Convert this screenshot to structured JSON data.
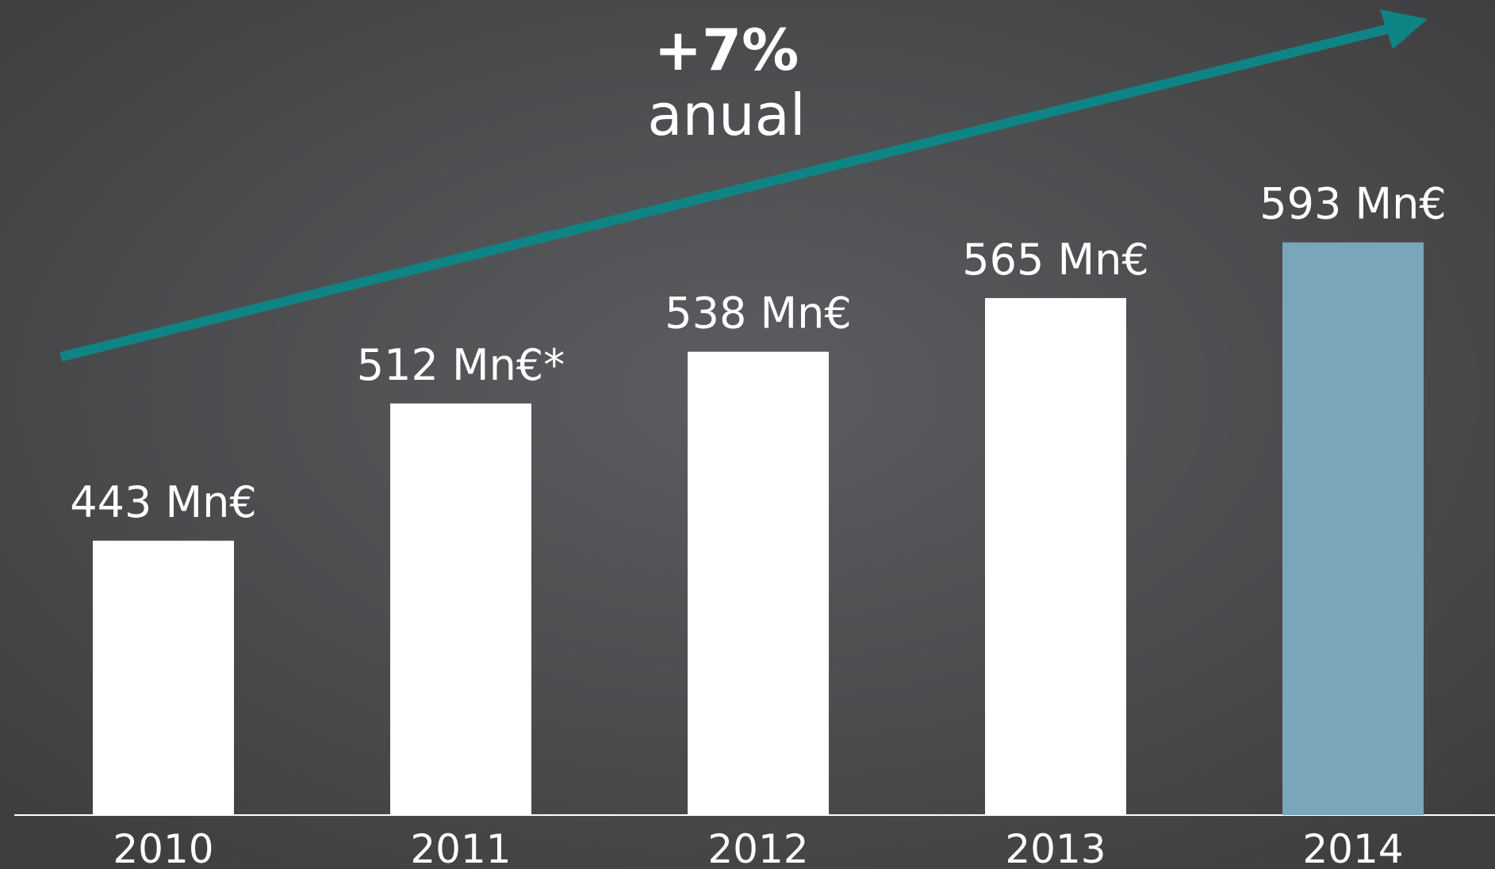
{
  "chart_data": {
    "type": "bar",
    "annotations": [
      "+7%",
      "anual"
    ],
    "categories": [
      "2010",
      "2011",
      "2012",
      "2013",
      "2014"
    ],
    "values": [
      443,
      512,
      538,
      565,
      593
    ],
    "value_labels": [
      "443 Mn€",
      "512 Mn€*",
      "538 Mn€",
      "565 Mn€",
      "593 Mn€"
    ],
    "colors": [
      "#ffffff",
      "#ffffff",
      "#ffffff",
      "#ffffff",
      "#7aa6bb"
    ],
    "ylim": [
      305,
      620
    ]
  }
}
